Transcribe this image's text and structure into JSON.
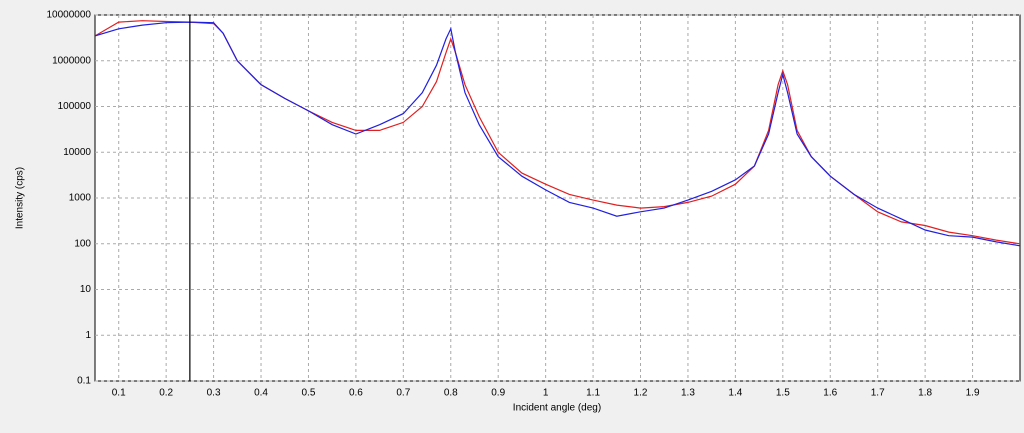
{
  "chart_data": {
    "type": "line",
    "xlabel": "Incident angle (deg)",
    "ylabel": "Intensity (cps)",
    "x": [
      0.05,
      0.1,
      0.15,
      0.2,
      0.25,
      0.3,
      0.32,
      0.35,
      0.4,
      0.45,
      0.5,
      0.55,
      0.6,
      0.65,
      0.7,
      0.74,
      0.77,
      0.79,
      0.8,
      0.81,
      0.83,
      0.86,
      0.9,
      0.95,
      1.0,
      1.05,
      1.1,
      1.15,
      1.2,
      1.25,
      1.3,
      1.35,
      1.4,
      1.44,
      1.47,
      1.49,
      1.5,
      1.51,
      1.53,
      1.56,
      1.6,
      1.65,
      1.7,
      1.75,
      1.8,
      1.85,
      1.9,
      1.95,
      2.0
    ],
    "series": [
      {
        "color": "#e02020",
        "values": [
          3500000,
          7000000,
          7500000,
          7200000,
          7000000,
          6500000,
          4000000,
          1000000,
          300000,
          150000,
          80000,
          45000,
          30000,
          30000,
          45000,
          100000,
          350000,
          1500000,
          3000000,
          1500000,
          300000,
          60000,
          10000,
          3500,
          2000,
          1200,
          900,
          700,
          600,
          650,
          800,
          1100,
          2000,
          5000,
          30000,
          300000,
          600000,
          300000,
          30000,
          8000,
          3000,
          1200,
          500,
          300,
          250,
          180,
          150,
          120,
          100
        ]
      },
      {
        "color": "#2020e0",
        "values": [
          3500000,
          5000000,
          6000000,
          6800000,
          7000000,
          6800000,
          4000000,
          1000000,
          300000,
          150000,
          80000,
          40000,
          25000,
          40000,
          70000,
          200000,
          800000,
          3000000,
          5000000,
          1500000,
          200000,
          40000,
          8000,
          3000,
          1500,
          800,
          600,
          400,
          500,
          600,
          900,
          1400,
          2500,
          5000,
          25000,
          200000,
          500000,
          200000,
          25000,
          8000,
          3000,
          1200,
          600,
          350,
          200,
          150,
          140,
          110,
          90
        ]
      }
    ],
    "xlim": [
      0.05,
      2.0
    ],
    "xticks": [
      0.1,
      0.2,
      0.3,
      0.4,
      0.5,
      0.6,
      0.7,
      0.8,
      0.9,
      1,
      1.1,
      1.2,
      1.3,
      1.4,
      1.5,
      1.6,
      1.7,
      1.8,
      1.9
    ],
    "ylim": [
      0.1,
      10000000
    ],
    "yticks": [
      0.1,
      1,
      10,
      100,
      1000,
      10000,
      100000,
      1000000,
      10000000
    ],
    "log_y": true,
    "grid": true,
    "cursor_x": 0.25
  }
}
